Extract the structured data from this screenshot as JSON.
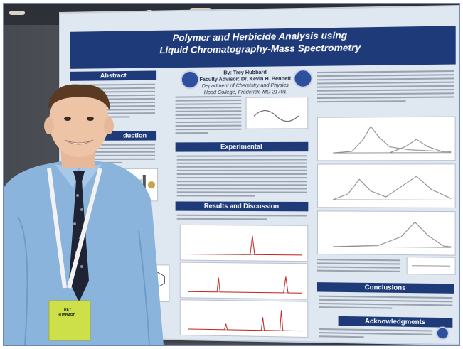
{
  "poster": {
    "title_line1": "Polymer and Herbicide Analysis using",
    "title_line2": "Liquid Chromatography-Mass Spectrometry",
    "author": "By:  Trey Hubbard",
    "advisor": "Faculty Advisor:  Dr. Kevin H. Bennett",
    "department": "Department of Chemistry and Physics",
    "college": "Hood College, Frederick, MD 21701",
    "sections": {
      "abstract": "Abstract",
      "introduction": "duction",
      "experimental": "Experimental",
      "results": "Results and Discussion",
      "conclusions": "Conclusions",
      "acknowledgments": "Acknowledgments"
    }
  },
  "badge": {
    "name_line1": "TREY",
    "name_line2": "HUBBARD"
  },
  "colors": {
    "poster_header": "#1f3a78",
    "poster_background": "#dfe7f1",
    "shirt": "#8ab4dc",
    "badge": "#cde04a"
  },
  "icons": {
    "college_seal": "seal-icon",
    "lanyard": "lanyard-icon"
  }
}
